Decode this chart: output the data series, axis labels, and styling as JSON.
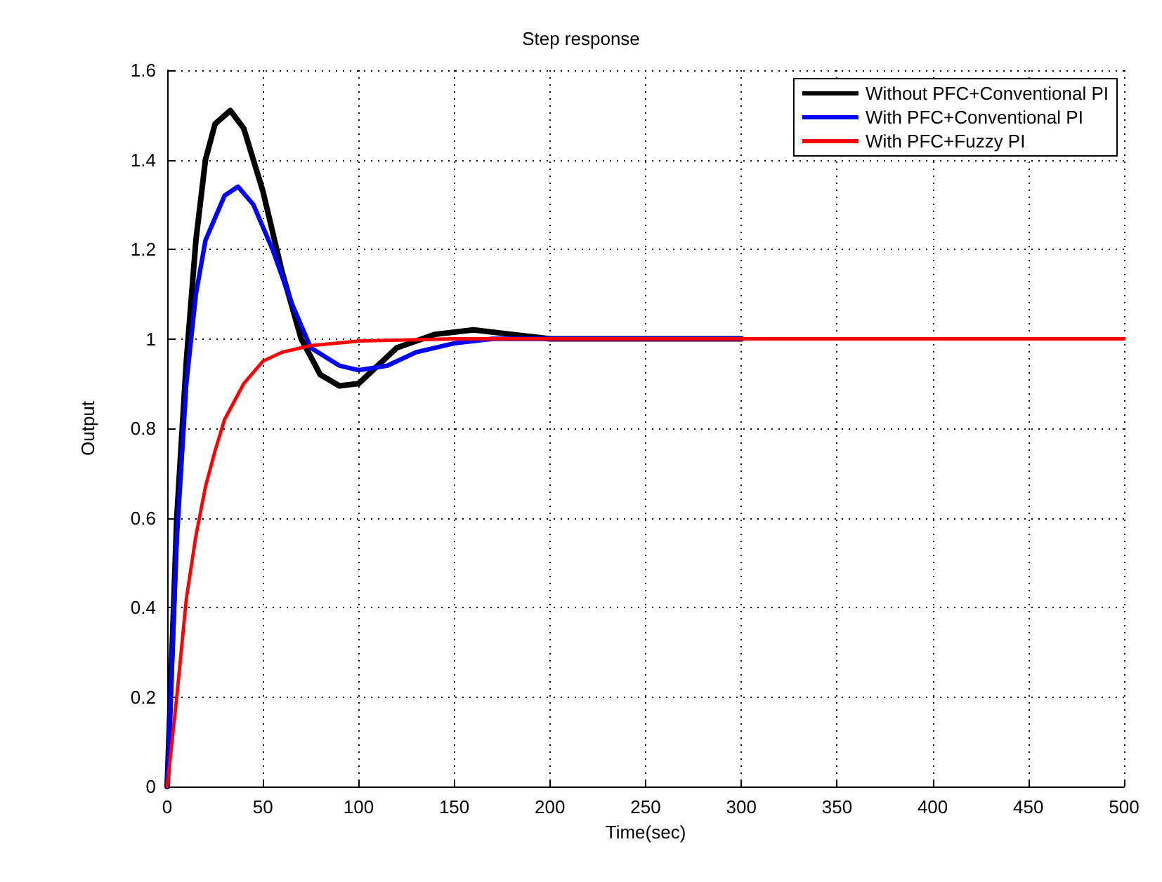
{
  "chart_data": {
    "type": "line",
    "title": "Step response",
    "xlabel": "Time(sec)",
    "ylabel": "Output",
    "xlim": [
      0,
      500
    ],
    "xticks": [
      0,
      50,
      100,
      150,
      200,
      250,
      300,
      350,
      400,
      450,
      500
    ],
    "ylim": [
      0,
      1.6
    ],
    "yticks": [
      0,
      0.2,
      0.4,
      0.6,
      0.8,
      1,
      1.2,
      1.4,
      1.6
    ],
    "grid": true,
    "legend": "top right",
    "line_style": "solid",
    "marker": "none",
    "series": [
      {
        "name": "Without PFC+Conventional PI",
        "color": "#000000",
        "x": [
          0,
          5,
          10,
          15,
          20,
          25,
          33,
          40,
          50,
          60,
          70,
          80,
          90,
          100,
          110,
          120,
          140,
          160,
          180,
          200,
          300
        ],
        "values": [
          0,
          0.6,
          0.95,
          1.22,
          1.4,
          1.48,
          1.51,
          1.47,
          1.33,
          1.15,
          1.0,
          0.92,
          0.895,
          0.9,
          0.94,
          0.98,
          1.01,
          1.02,
          1.01,
          1.0,
          1.0
        ]
      },
      {
        "name": "With PFC+Conventional PI",
        "color": "#0000ff",
        "x": [
          0,
          5,
          10,
          15,
          20,
          30,
          37,
          45,
          55,
          65,
          75,
          90,
          100,
          115,
          130,
          150,
          170,
          300
        ],
        "values": [
          0,
          0.55,
          0.9,
          1.1,
          1.22,
          1.32,
          1.34,
          1.3,
          1.2,
          1.08,
          0.98,
          0.94,
          0.93,
          0.94,
          0.97,
          0.99,
          1.0,
          1.0
        ]
      },
      {
        "name": "With PFC+Fuzzy PI",
        "color": "#ff0000",
        "x": [
          0,
          5,
          10,
          15,
          20,
          25,
          30,
          40,
          50,
          60,
          75,
          100,
          150,
          500
        ],
        "values": [
          0,
          0.2,
          0.42,
          0.56,
          0.67,
          0.75,
          0.82,
          0.9,
          0.95,
          0.97,
          0.985,
          0.995,
          1.0,
          1.0
        ]
      }
    ]
  }
}
